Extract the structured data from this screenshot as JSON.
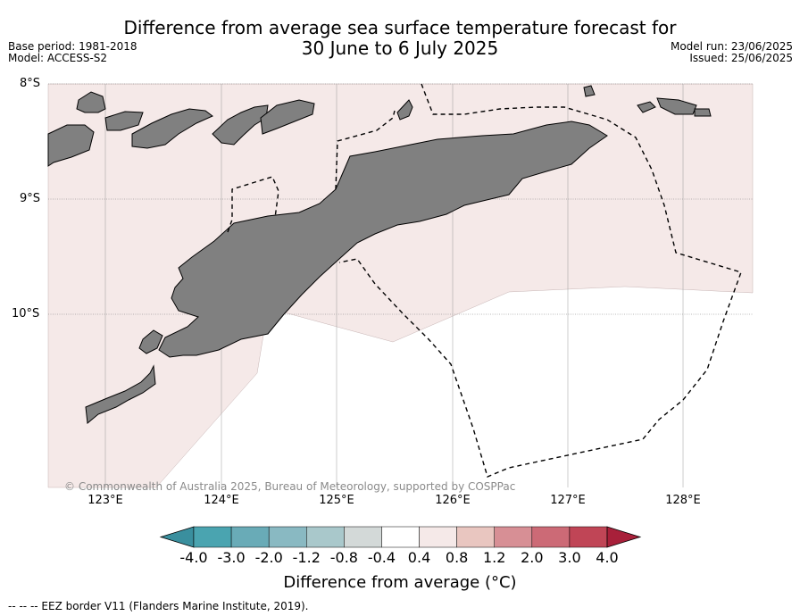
{
  "title": "Difference from average sea surface temperature forecast for\n30 June to 6 July 2025",
  "meta_left": {
    "base_period": "Base period: 1981-2018",
    "model": "Model: ACCESS-S2"
  },
  "meta_right": {
    "model_run": "Model run: 23/06/2025",
    "issued": "Issued: 25/06/2025"
  },
  "map": {
    "latitude_labels": [
      "8°S",
      "9°S",
      "10°S"
    ],
    "longitude_labels": [
      "123°E",
      "124°E",
      "125°E",
      "126°E",
      "127°E",
      "128°E"
    ],
    "land_color": "#808080",
    "anomaly_shading_color": "#f5e9e8",
    "eez_border_style": "dashed",
    "copyright": "© Commonwealth of Australia 2025, Bureau of Meteorology, supported by COSPPac"
  },
  "colorbar": {
    "tick_labels": [
      "-4.0",
      "-3.0",
      "-2.0",
      "-1.2",
      "-0.8",
      "-0.4",
      "0.4",
      "0.8",
      "1.2",
      "2.0",
      "3.0",
      "4.0"
    ],
    "colors": [
      "#3a8f9e",
      "#4aa4b0",
      "#69abb7",
      "#89b9c2",
      "#a9c8cb",
      "#d3d9d8",
      "#ffffff",
      "#f5e9e8",
      "#e9c6c0",
      "#d78f95",
      "#cc6a76",
      "#c04556",
      "#a8203a"
    ],
    "title": "Difference from average (°C)"
  },
  "footer": "--  --  -- EEZ border V11 (Flanders Marine Institute, 2019)."
}
